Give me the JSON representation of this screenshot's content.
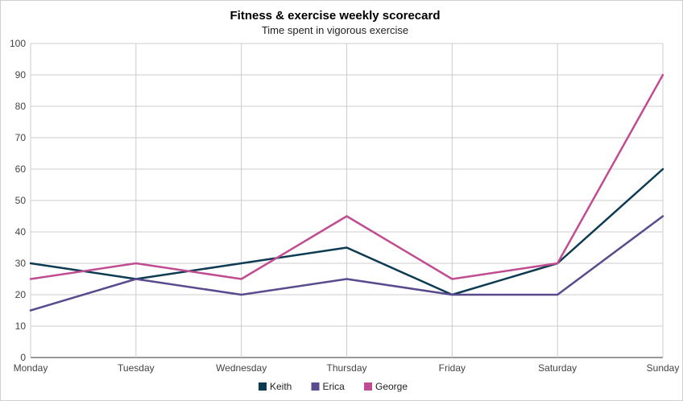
{
  "chart_data": {
    "type": "line",
    "title": "Fitness & exercise weekly scorecard",
    "subtitle": "Time spent in vigorous exercise",
    "xlabel": "",
    "ylabel": "",
    "categories": [
      "Monday",
      "Tuesday",
      "Wednesday",
      "Thursday",
      "Friday",
      "Saturday",
      "Sunday"
    ],
    "ylim": [
      0,
      100
    ],
    "yticks": [
      "0",
      "10",
      "20",
      "30",
      "40",
      "50",
      "60",
      "70",
      "80",
      "90",
      "100"
    ],
    "grid": true,
    "legend_position": "bottom",
    "series": [
      {
        "name": "Keith",
        "color": "#0d3b52",
        "values": [
          30,
          25,
          30,
          35,
          20,
          30,
          60
        ]
      },
      {
        "name": "Erica",
        "color": "#5a4a8e",
        "values": [
          15,
          25,
          20,
          25,
          20,
          20,
          45
        ]
      },
      {
        "name": "George",
        "color": "#c04d92",
        "values": [
          25,
          30,
          25,
          45,
          25,
          30,
          90
        ]
      }
    ]
  }
}
